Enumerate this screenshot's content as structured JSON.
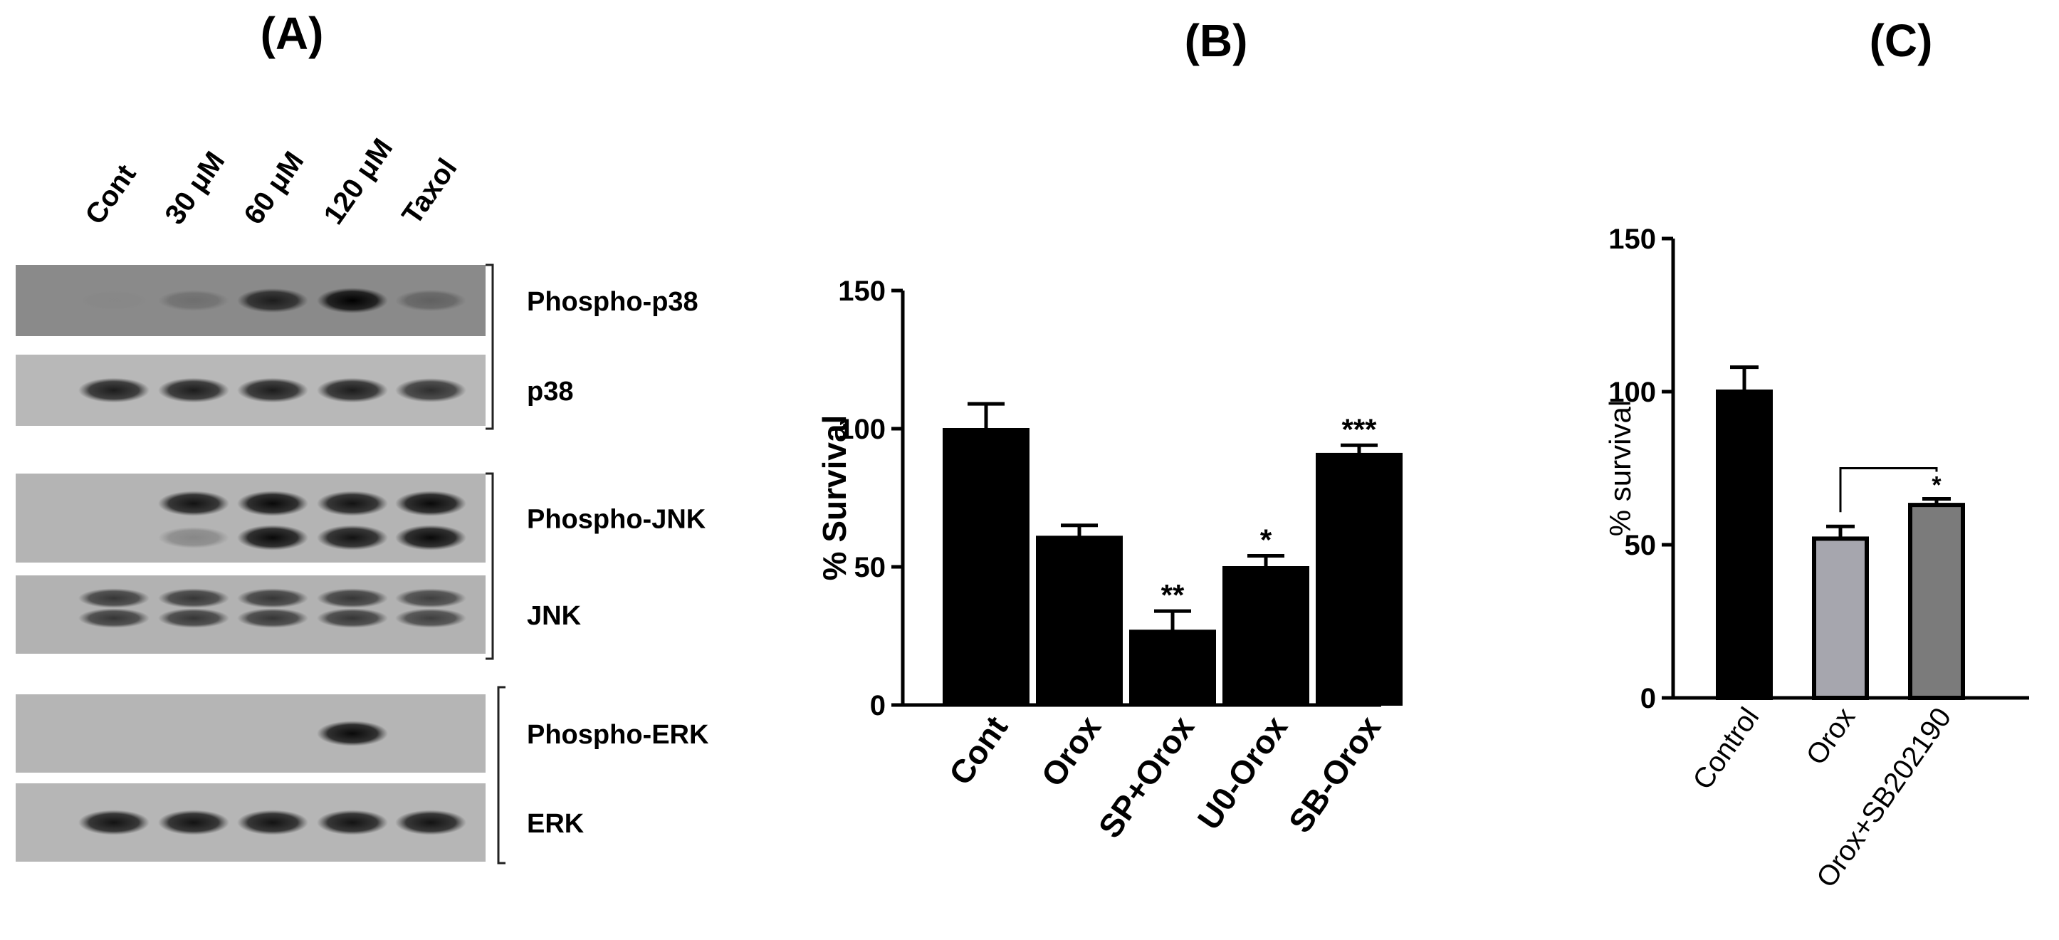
{
  "panels": {
    "a_label": "(A)",
    "b_label": "(B)",
    "c_label": "(C)"
  },
  "western_blot": {
    "lanes": [
      "Cont",
      "30 μM",
      "60 μM",
      "120 μM",
      "Taxol"
    ],
    "bands": [
      {
        "label": "Phospho-p38",
        "intensity": [
          0.02,
          0.2,
          0.8,
          1.0,
          0.3
        ]
      },
      {
        "label": "p38",
        "intensity": [
          0.85,
          0.85,
          0.85,
          0.85,
          0.75
        ]
      },
      {
        "label": "Phospho-JNK",
        "intensity": [
          0.6,
          0.9,
          0.95,
          0.9,
          0.95
        ]
      },
      {
        "label": "JNK",
        "intensity": [
          0.7,
          0.7,
          0.7,
          0.7,
          0.65
        ]
      },
      {
        "label": "Phospho-ERK",
        "intensity": [
          0,
          0,
          0,
          0.95,
          0
        ]
      },
      {
        "label": "ERK",
        "intensity": [
          0.9,
          0.9,
          0.9,
          0.9,
          0.9
        ]
      }
    ]
  },
  "chart_data": [
    {
      "type": "bar",
      "title": "",
      "xlabel": "",
      "ylabel": "% Survival",
      "ylim": [
        0,
        150
      ],
      "yticks": [
        0,
        50,
        100,
        150
      ],
      "categories": [
        "Cont",
        "Orox",
        "SP+Orox",
        "U0-Orox",
        "SB-Orox"
      ],
      "values": [
        100,
        61,
        27,
        50,
        91
      ],
      "errors": [
        9,
        4,
        7,
        4,
        3
      ],
      "annotations": [
        "",
        "",
        "**",
        "*",
        "***"
      ],
      "colors": [
        "#000000",
        "#000000",
        "#000000",
        "#000000",
        "#000000"
      ]
    },
    {
      "type": "bar",
      "title": "",
      "xlabel": "",
      "ylabel": "% survival",
      "ylim": [
        0,
        150
      ],
      "yticks": [
        0,
        50,
        100,
        150
      ],
      "categories": [
        "Control",
        "Orox",
        "Orox+SB202190"
      ],
      "values": [
        100,
        52,
        63
      ],
      "errors": [
        8,
        4,
        2
      ],
      "annotations": [
        "",
        "",
        "*"
      ],
      "comparison": [
        "Orox",
        "Orox+SB202190"
      ],
      "colors": [
        "#000000",
        "#a6a6ae",
        "#7b7b7b"
      ]
    }
  ]
}
